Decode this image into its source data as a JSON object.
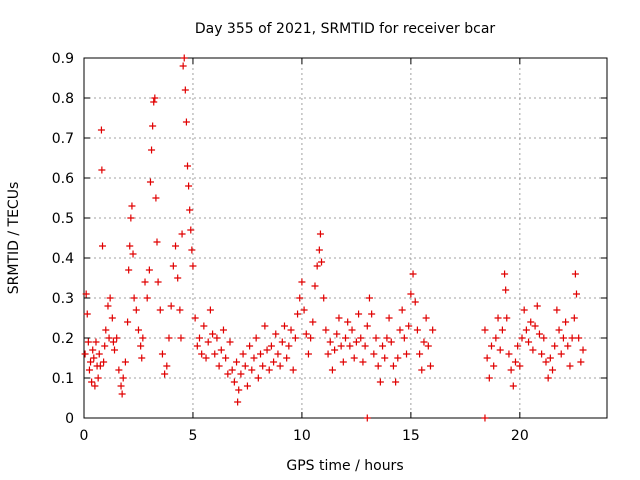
{
  "chart_data": {
    "type": "scatter",
    "title": "Day 355 of 2021, SRMTID for receiver bcar",
    "xlabel": "GPS time / hours",
    "ylabel": "SRMTID / TECUs",
    "xlim": [
      0,
      24
    ],
    "ylim": [
      0,
      0.9
    ],
    "x_ticks": [
      0,
      5,
      10,
      15,
      20
    ],
    "x_tick_labels": [
      "0",
      "5",
      "10",
      "15",
      "20"
    ],
    "y_ticks": [
      0,
      0.1,
      0.2,
      0.3,
      0.4,
      0.5,
      0.6,
      0.7,
      0.8,
      0.9
    ],
    "y_tick_labels": [
      "0",
      "0.1",
      "0.2",
      "0.3",
      "0.4",
      "0.5",
      "0.6",
      "0.7",
      "0.8",
      "0.9"
    ],
    "grid": true,
    "marker": "+",
    "color": "#e00000",
    "series": [
      {
        "name": "SRMTID",
        "points": [
          [
            0.05,
            0.16
          ],
          [
            0.1,
            0.31
          ],
          [
            0.15,
            0.26
          ],
          [
            0.2,
            0.19
          ],
          [
            0.25,
            0.12
          ],
          [
            0.3,
            0.14
          ],
          [
            0.35,
            0.09
          ],
          [
            0.4,
            0.17
          ],
          [
            0.45,
            0.15
          ],
          [
            0.5,
            0.08
          ],
          [
            0.55,
            0.19
          ],
          [
            0.6,
            0.13
          ],
          [
            0.65,
            0.1
          ],
          [
            0.7,
            0.16
          ],
          [
            0.75,
            0.13
          ],
          [
            0.8,
            0.72
          ],
          [
            0.82,
            0.62
          ],
          [
            0.85,
            0.43
          ],
          [
            0.9,
            0.14
          ],
          [
            0.95,
            0.18
          ],
          [
            1.0,
            0.22
          ],
          [
            1.1,
            0.28
          ],
          [
            1.15,
            0.2
          ],
          [
            1.2,
            0.3
          ],
          [
            1.3,
            0.25
          ],
          [
            1.35,
            0.19
          ],
          [
            1.4,
            0.17
          ],
          [
            1.5,
            0.2
          ],
          [
            1.6,
            0.12
          ],
          [
            1.7,
            0.08
          ],
          [
            1.75,
            0.06
          ],
          [
            1.8,
            0.1
          ],
          [
            1.9,
            0.14
          ],
          [
            2.0,
            0.24
          ],
          [
            2.05,
            0.37
          ],
          [
            2.1,
            0.43
          ],
          [
            2.15,
            0.5
          ],
          [
            2.2,
            0.53
          ],
          [
            2.25,
            0.41
          ],
          [
            2.3,
            0.3
          ],
          [
            2.4,
            0.27
          ],
          [
            2.5,
            0.22
          ],
          [
            2.6,
            0.18
          ],
          [
            2.65,
            0.15
          ],
          [
            2.7,
            0.2
          ],
          [
            2.8,
            0.34
          ],
          [
            2.9,
            0.3
          ],
          [
            3.0,
            0.37
          ],
          [
            3.05,
            0.59
          ],
          [
            3.1,
            0.67
          ],
          [
            3.15,
            0.73
          ],
          [
            3.2,
            0.79
          ],
          [
            3.25,
            0.8
          ],
          [
            3.3,
            0.55
          ],
          [
            3.35,
            0.44
          ],
          [
            3.4,
            0.34
          ],
          [
            3.5,
            0.27
          ],
          [
            3.6,
            0.16
          ],
          [
            3.7,
            0.11
          ],
          [
            3.8,
            0.13
          ],
          [
            3.9,
            0.2
          ],
          [
            4.0,
            0.28
          ],
          [
            4.1,
            0.38
          ],
          [
            4.2,
            0.43
          ],
          [
            4.3,
            0.35
          ],
          [
            4.4,
            0.27
          ],
          [
            4.45,
            0.2
          ],
          [
            4.5,
            0.46
          ],
          [
            4.55,
            0.88
          ],
          [
            4.6,
            0.9
          ],
          [
            4.65,
            0.82
          ],
          [
            4.7,
            0.74
          ],
          [
            4.75,
            0.63
          ],
          [
            4.8,
            0.58
          ],
          [
            4.85,
            0.52
          ],
          [
            4.9,
            0.47
          ],
          [
            4.95,
            0.42
          ],
          [
            5.0,
            0.38
          ],
          [
            5.1,
            0.25
          ],
          [
            5.2,
            0.18
          ],
          [
            5.3,
            0.2
          ],
          [
            5.4,
            0.16
          ],
          [
            5.5,
            0.23
          ],
          [
            5.6,
            0.15
          ],
          [
            5.7,
            0.19
          ],
          [
            5.8,
            0.27
          ],
          [
            5.9,
            0.21
          ],
          [
            6.0,
            0.16
          ],
          [
            6.1,
            0.2
          ],
          [
            6.2,
            0.13
          ],
          [
            6.3,
            0.17
          ],
          [
            6.4,
            0.22
          ],
          [
            6.5,
            0.15
          ],
          [
            6.6,
            0.11
          ],
          [
            6.7,
            0.19
          ],
          [
            6.8,
            0.12
          ],
          [
            6.9,
            0.09
          ],
          [
            7.0,
            0.14
          ],
          [
            7.05,
            0.04
          ],
          [
            7.1,
            0.07
          ],
          [
            7.2,
            0.11
          ],
          [
            7.3,
            0.16
          ],
          [
            7.4,
            0.13
          ],
          [
            7.5,
            0.08
          ],
          [
            7.6,
            0.18
          ],
          [
            7.7,
            0.12
          ],
          [
            7.8,
            0.15
          ],
          [
            7.9,
            0.2
          ],
          [
            8.0,
            0.1
          ],
          [
            8.1,
            0.16
          ],
          [
            8.2,
            0.13
          ],
          [
            8.3,
            0.23
          ],
          [
            8.4,
            0.17
          ],
          [
            8.5,
            0.12
          ],
          [
            8.6,
            0.18
          ],
          [
            8.7,
            0.14
          ],
          [
            8.8,
            0.21
          ],
          [
            8.9,
            0.16
          ],
          [
            9.0,
            0.13
          ],
          [
            9.1,
            0.19
          ],
          [
            9.2,
            0.23
          ],
          [
            9.3,
            0.15
          ],
          [
            9.4,
            0.18
          ],
          [
            9.5,
            0.22
          ],
          [
            9.6,
            0.12
          ],
          [
            9.7,
            0.2
          ],
          [
            9.8,
            0.26
          ],
          [
            9.9,
            0.3
          ],
          [
            10.0,
            0.34
          ],
          [
            10.1,
            0.27
          ],
          [
            10.2,
            0.21
          ],
          [
            10.3,
            0.16
          ],
          [
            10.4,
            0.2
          ],
          [
            10.5,
            0.24
          ],
          [
            10.6,
            0.33
          ],
          [
            10.7,
            0.38
          ],
          [
            10.8,
            0.42
          ],
          [
            10.85,
            0.46
          ],
          [
            10.9,
            0.39
          ],
          [
            11.0,
            0.3
          ],
          [
            11.1,
            0.22
          ],
          [
            11.2,
            0.16
          ],
          [
            11.3,
            0.19
          ],
          [
            11.4,
            0.12
          ],
          [
            11.5,
            0.17
          ],
          [
            11.6,
            0.21
          ],
          [
            11.7,
            0.25
          ],
          [
            11.8,
            0.18
          ],
          [
            11.9,
            0.14
          ],
          [
            12.0,
            0.2
          ],
          [
            12.1,
            0.24
          ],
          [
            12.2,
            0.18
          ],
          [
            12.3,
            0.22
          ],
          [
            12.4,
            0.15
          ],
          [
            12.5,
            0.19
          ],
          [
            12.6,
            0.26
          ],
          [
            12.7,
            0.2
          ],
          [
            12.8,
            0.14
          ],
          [
            12.9,
            0.18
          ],
          [
            13.0,
            0.23
          ],
          [
            13.1,
            0.3
          ],
          [
            13.2,
            0.26
          ],
          [
            13.3,
            0.16
          ],
          [
            13.4,
            0.2
          ],
          [
            13.5,
            0.13
          ],
          [
            13.6,
            0.09
          ],
          [
            13.7,
            0.18
          ],
          [
            13.8,
            0.15
          ],
          [
            13.9,
            0.2
          ],
          [
            14.0,
            0.25
          ],
          [
            14.1,
            0.19
          ],
          [
            14.2,
            0.13
          ],
          [
            14.3,
            0.09
          ],
          [
            14.4,
            0.15
          ],
          [
            14.5,
            0.22
          ],
          [
            14.6,
            0.27
          ],
          [
            14.7,
            0.2
          ],
          [
            14.8,
            0.16
          ],
          [
            14.9,
            0.23
          ],
          [
            15.0,
            0.31
          ],
          [
            15.1,
            0.36
          ],
          [
            15.2,
            0.29
          ],
          [
            15.3,
            0.22
          ],
          [
            15.4,
            0.16
          ],
          [
            15.5,
            0.12
          ],
          [
            15.6,
            0.19
          ],
          [
            15.7,
            0.25
          ],
          [
            15.8,
            0.18
          ],
          [
            15.9,
            0.13
          ],
          [
            16.0,
            0.22
          ],
          [
            18.4,
            0.22
          ],
          [
            18.5,
            0.15
          ],
          [
            18.6,
            0.1
          ],
          [
            18.7,
            0.18
          ],
          [
            18.8,
            0.13
          ],
          [
            18.9,
            0.2
          ],
          [
            19.0,
            0.25
          ],
          [
            19.1,
            0.17
          ],
          [
            19.2,
            0.22
          ],
          [
            19.3,
            0.36
          ],
          [
            19.35,
            0.32
          ],
          [
            19.4,
            0.25
          ],
          [
            19.5,
            0.16
          ],
          [
            19.6,
            0.12
          ],
          [
            19.7,
            0.08
          ],
          [
            19.8,
            0.14
          ],
          [
            19.9,
            0.18
          ],
          [
            20.0,
            0.13
          ],
          [
            20.1,
            0.2
          ],
          [
            20.2,
            0.27
          ],
          [
            20.3,
            0.22
          ],
          [
            20.4,
            0.19
          ],
          [
            20.5,
            0.24
          ],
          [
            20.6,
            0.17
          ],
          [
            20.7,
            0.23
          ],
          [
            20.8,
            0.28
          ],
          [
            20.9,
            0.21
          ],
          [
            21.0,
            0.16
          ],
          [
            21.1,
            0.2
          ],
          [
            21.2,
            0.14
          ],
          [
            21.3,
            0.1
          ],
          [
            21.4,
            0.15
          ],
          [
            21.5,
            0.12
          ],
          [
            21.6,
            0.18
          ],
          [
            21.7,
            0.27
          ],
          [
            21.8,
            0.22
          ],
          [
            21.9,
            0.16
          ],
          [
            22.0,
            0.2
          ],
          [
            22.1,
            0.24
          ],
          [
            22.2,
            0.18
          ],
          [
            22.3,
            0.13
          ],
          [
            22.4,
            0.2
          ],
          [
            22.5,
            0.25
          ],
          [
            22.55,
            0.36
          ],
          [
            22.6,
            0.31
          ],
          [
            22.7,
            0.2
          ],
          [
            22.8,
            0.14
          ],
          [
            22.9,
            0.17
          ],
          [
            13.0,
            0.0
          ],
          [
            18.4,
            0.0
          ]
        ]
      }
    ]
  }
}
